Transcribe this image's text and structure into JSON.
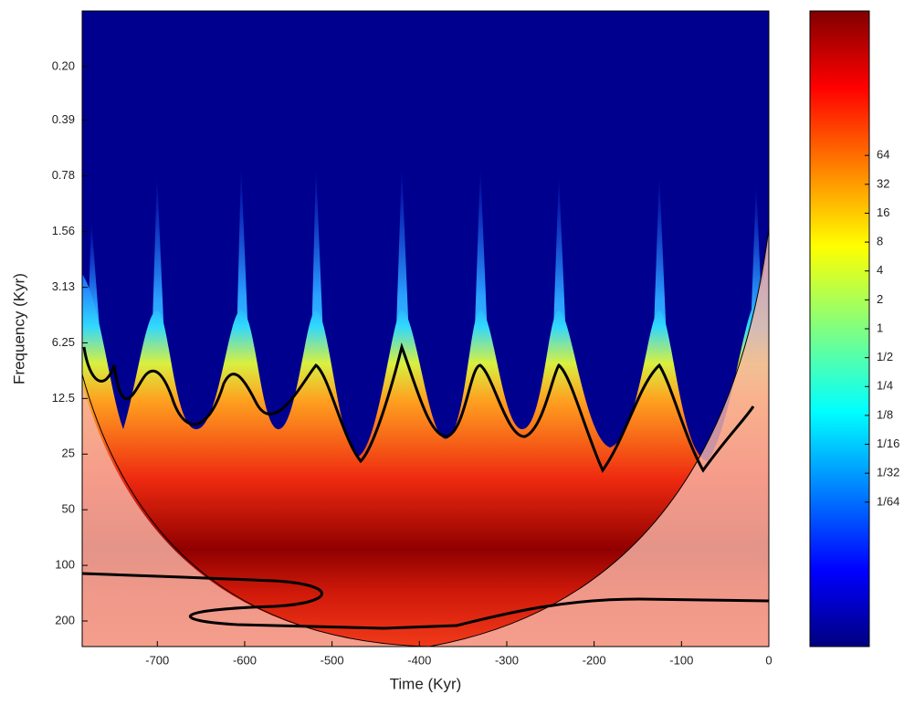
{
  "chart_data": {
    "type": "heatmap",
    "x_label": "Time (Kyr)",
    "y_label": "Frequency (Kyr)",
    "xlim": [
      -786,
      0
    ],
    "xticks": [
      -700,
      -600,
      -500,
      -400,
      -300,
      -200,
      -100,
      0
    ],
    "ylim": [
      0.1,
      275
    ],
    "y_log_base": 2,
    "y_inverted": true,
    "yticks": [
      {
        "value": 0.2,
        "label": "0.20"
      },
      0.39,
      0.78,
      1.56,
      3.13,
      6.25,
      12.5,
      25,
      50,
      100,
      200
    ],
    "colormap": "jet",
    "clim": [
      0.00048828125,
      2048
    ],
    "cticks": [
      {
        "value": 64,
        "label": "64"
      },
      {
        "value": 32,
        "label": "32"
      },
      {
        "value": 16,
        "label": "16"
      },
      {
        "value": 8,
        "label": "8"
      },
      {
        "value": 4,
        "label": "4"
      },
      {
        "value": 2,
        "label": "2"
      },
      {
        "value": 1,
        "label": "1"
      },
      {
        "value": 0.5,
        "label": "1/2"
      },
      {
        "value": 0.25,
        "label": "1/4"
      },
      {
        "value": 0.125,
        "label": "1/8"
      },
      {
        "value": 0.0625,
        "label": "1/16"
      },
      {
        "value": 0.03125,
        "label": "1/32"
      },
      {
        "value": 0.015625,
        "label": "1/64"
      }
    ]
  }
}
